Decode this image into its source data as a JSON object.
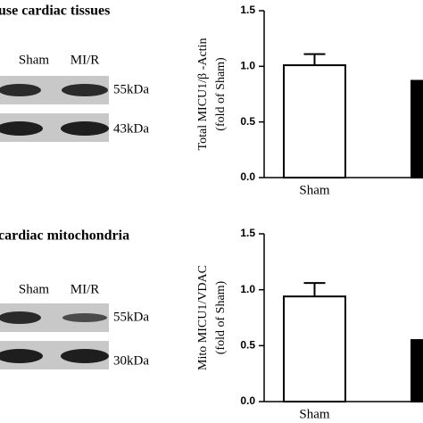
{
  "blots": [
    {
      "title": "use cardiac tissues",
      "lanes": [
        "Sham",
        "MI/R"
      ],
      "markers": [
        "55kDa",
        "43kDa"
      ]
    },
    {
      "title": "cardiac mitochondria",
      "lanes": [
        "Sham",
        "MI/R"
      ],
      "markers": [
        "55kDa",
        "30kDa"
      ]
    }
  ],
  "chart_data": [
    {
      "type": "bar",
      "ylabel": [
        "Total MICU1/β -Actin",
        "(fold of Sham)"
      ],
      "categories": [
        "Sham",
        null
      ],
      "values": [
        1.01,
        0.87
      ],
      "errors": [
        0.1,
        null
      ],
      "colors": [
        "#ffffff",
        "#000000"
      ],
      "ylim": [
        0,
        1.5
      ],
      "yticks": [
        {
          "value": 0,
          "label": "0.0"
        },
        {
          "value": 0.5,
          "label": "0.5"
        },
        {
          "value": 1,
          "label": "1.0"
        },
        {
          "value": 1.5,
          "label": "1.5"
        }
      ]
    },
    {
      "type": "bar",
      "ylabel": [
        "Mito MICU1/VDAC",
        "(fold of Sham)"
      ],
      "categories": [
        "Sham",
        null
      ],
      "values": [
        0.94,
        0.55
      ],
      "errors": [
        0.12,
        null
      ],
      "colors": [
        "#ffffff",
        "#000000"
      ],
      "ylim": [
        0,
        1.5
      ],
      "yticks": [
        {
          "value": 0,
          "label": "0.0"
        },
        {
          "value": 0.5,
          "label": "0.5"
        },
        {
          "value": 1,
          "label": "1.0"
        },
        {
          "value": 1.5,
          "label": "1.5"
        }
      ]
    }
  ]
}
